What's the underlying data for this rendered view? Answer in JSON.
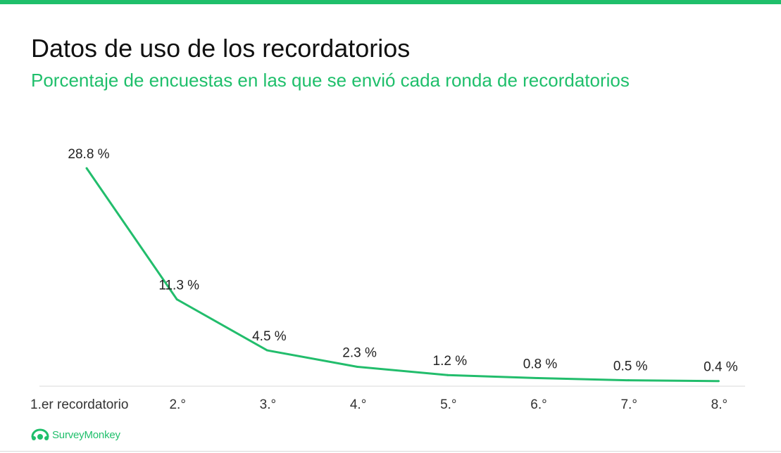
{
  "title": "Datos de uso de los recordatorios",
  "subtitle": "Porcentaje de encuestas en las que se envió cada ronda de recordatorios",
  "brand": {
    "name": "SurveyMonkey",
    "icon": "surveymonkey-logo-icon",
    "color": "#1fbf6b"
  },
  "colors": {
    "accent": "#1fbf6b",
    "line": "#22bd6c",
    "axis": "#d9d9d9",
    "text": "#222222"
  },
  "chart_data": {
    "type": "line",
    "title": "Datos de uso de los recordatorios",
    "subtitle": "Porcentaje de encuestas en las que se envió cada ronda de recordatorios",
    "categories": [
      "1.er recordatorio",
      "2.°",
      "3.°",
      "4.°",
      "5.°",
      "6.°",
      "7.°",
      "8.°"
    ],
    "series": [
      {
        "values": [
          28.8,
          11.3,
          4.5,
          2.3,
          1.2,
          0.8,
          0.5,
          0.4
        ],
        "labels": [
          "28.8 %",
          "11.3 %",
          "4.5 %",
          "2.3 %",
          "1.2 %",
          "0.8 %",
          "0.5 %",
          "0.4 %"
        ]
      }
    ],
    "ylim": [
      0,
      29
    ],
    "grid": false,
    "legend": "none"
  }
}
